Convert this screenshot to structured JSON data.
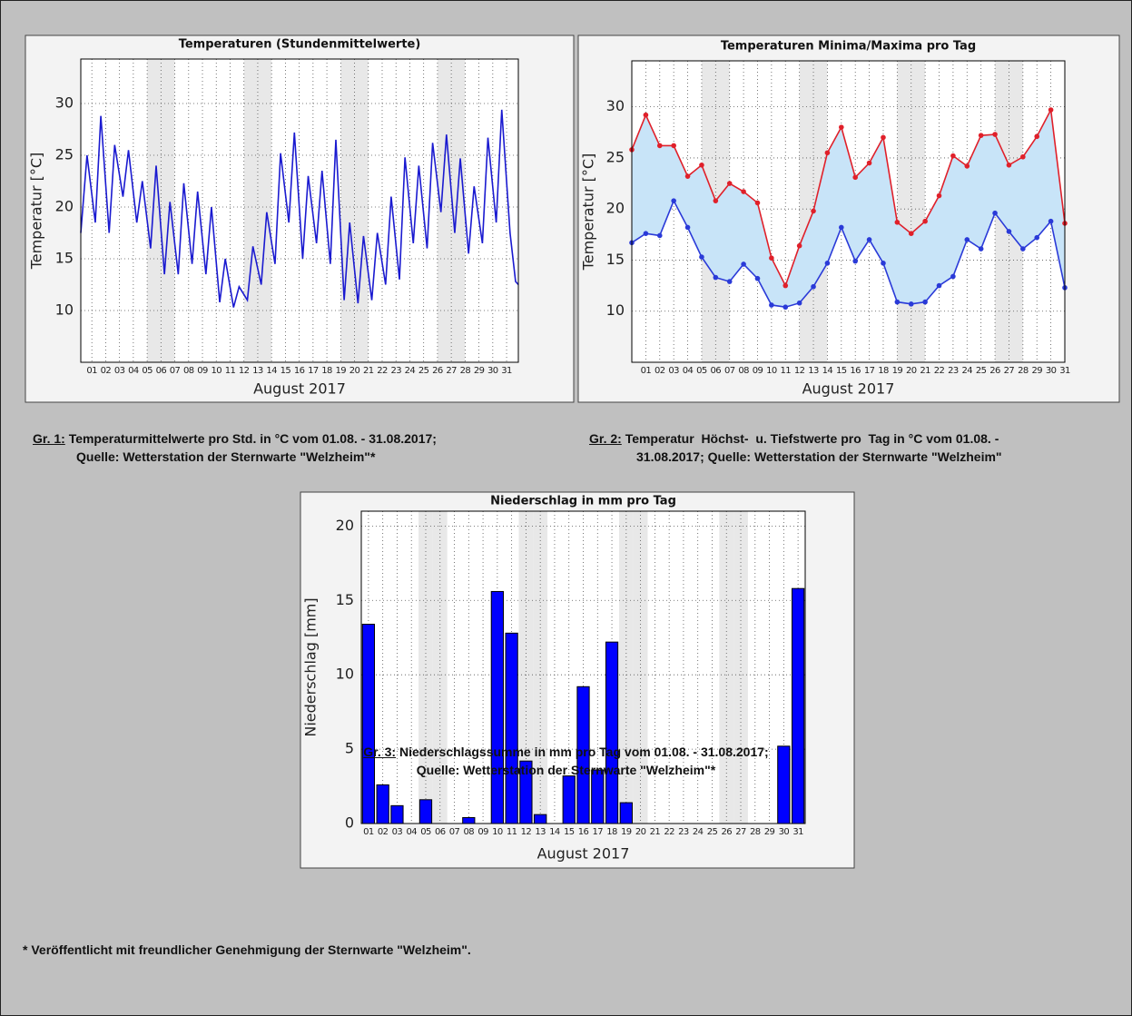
{
  "chart_data": [
    {
      "type": "line",
      "title": "Temperaturen (Stundenmittelwerte)",
      "ylabel": "Temperatur [°C]",
      "xlabel": "August 2017",
      "x": [
        0.2,
        0.65,
        1.25,
        1.65,
        2.25,
        2.65,
        3.25,
        3.65,
        4.25,
        4.65,
        5.25,
        5.65,
        6.25,
        6.65,
        7.25,
        7.65,
        8.25,
        8.65,
        9.25,
        9.65,
        10.25,
        10.65,
        11.25,
        11.65,
        12.25,
        12.65,
        13.25,
        13.65,
        14.25,
        14.65,
        15.25,
        15.65,
        16.25,
        16.65,
        17.25,
        17.65,
        18.25,
        18.65,
        19.25,
        19.65,
        20.25,
        20.65,
        21.25,
        21.65,
        22.25,
        22.65,
        23.25,
        23.65,
        24.25,
        24.65,
        25.25,
        25.65,
        26.25,
        26.65,
        27.25,
        27.65,
        28.25,
        28.65,
        29.25,
        29.65,
        30.25,
        30.65,
        31.25,
        31.65,
        31.85
      ],
      "series": [
        {
          "color": "#1a1ad0",
          "values": [
            17.5,
            25,
            18.5,
            28.8,
            17.5,
            26,
            21,
            25.5,
            18.5,
            22.5,
            16,
            24,
            13.5,
            20.5,
            13.5,
            22.3,
            14.5,
            21.5,
            13.5,
            20,
            10.8,
            15,
            10.3,
            12.3,
            11,
            16.2,
            12.5,
            19.5,
            14.5,
            25.2,
            18.5,
            27.2,
            15,
            23,
            16.5,
            23.5,
            14.5,
            26.5,
            11,
            18.5,
            10.7,
            17.2,
            11,
            17.5,
            12.5,
            21,
            13,
            24.8,
            16.5,
            24,
            16,
            26.2,
            19.5,
            27,
            17.5,
            24.7,
            15.5,
            22,
            16.5,
            26.7,
            18.5,
            29.4,
            17.5,
            12.8,
            12.5
          ]
        }
      ],
      "xlim": [
        0.2,
        31.85
      ],
      "xticks": [
        {
          "value": 1,
          "label": "01"
        },
        {
          "value": 2,
          "label": "02"
        },
        {
          "value": 3,
          "label": "03"
        },
        {
          "value": 4,
          "label": "04"
        },
        {
          "value": 5,
          "label": "05"
        },
        {
          "value": 6,
          "label": "06"
        },
        {
          "value": 7,
          "label": "07"
        },
        {
          "value": 8,
          "label": "08"
        },
        {
          "value": 9,
          "label": "09"
        },
        {
          "value": 10,
          "label": "10"
        },
        {
          "value": 11,
          "label": "11"
        },
        {
          "value": 12,
          "label": "12"
        },
        {
          "value": 13,
          "label": "13"
        },
        {
          "value": 14,
          "label": "14"
        },
        {
          "value": 15,
          "label": "15"
        },
        {
          "value": 16,
          "label": "16"
        },
        {
          "value": 17,
          "label": "17"
        },
        {
          "value": 18,
          "label": "18"
        },
        {
          "value": 19,
          "label": "19"
        },
        {
          "value": 20,
          "label": "20"
        },
        {
          "value": 21,
          "label": "21"
        },
        {
          "value": 22,
          "label": "22"
        },
        {
          "value": 23,
          "label": "23"
        },
        {
          "value": 24,
          "label": "24"
        },
        {
          "value": 25,
          "label": "25"
        },
        {
          "value": 26,
          "label": "26"
        },
        {
          "value": 27,
          "label": "27"
        },
        {
          "value": 28,
          "label": "28"
        },
        {
          "value": 29,
          "label": "29"
        },
        {
          "value": 30,
          "label": "30"
        },
        {
          "value": 31,
          "label": "31"
        }
      ],
      "ylim": [
        5,
        34.3
      ],
      "yticks": [
        10,
        15,
        20,
        25,
        30
      ],
      "grid": true,
      "weekend_days": [
        5,
        6,
        12,
        13,
        19,
        20,
        26,
        27
      ]
    },
    {
      "type": "line",
      "title": "Temperaturen Minima/Maxima pro Tag",
      "ylabel": "Temperatur [°C]",
      "xlabel": "August 2017",
      "categories": [
        null,
        "01",
        "02",
        "03",
        "04",
        "05",
        "06",
        "07",
        "08",
        "09",
        "10",
        "11",
        "12",
        "13",
        "14",
        "15",
        "16",
        "17",
        "18",
        "19",
        "20",
        "21",
        "22",
        "23",
        "24",
        "25",
        "26",
        "27",
        "28",
        "29",
        "30",
        "31"
      ],
      "series": [
        {
          "color": "#e0202a",
          "values": [
            25.8,
            29.2,
            26.2,
            26.2,
            23.2,
            24.3,
            20.8,
            22.5,
            21.7,
            20.6,
            15.2,
            12.5,
            16.4,
            19.8,
            25.5,
            28.0,
            23.1,
            24.5,
            27.0,
            18.7,
            17.6,
            18.8,
            21.3,
            25.2,
            24.2,
            27.2,
            27.3,
            24.3,
            25.1,
            27.1,
            29.7,
            18.6
          ]
        },
        {
          "color": "#2a3ad8",
          "values": [
            16.7,
            17.6,
            17.4,
            20.8,
            18.2,
            15.3,
            13.3,
            12.9,
            14.6,
            13.2,
            10.6,
            10.4,
            10.8,
            12.4,
            14.7,
            18.2,
            14.9,
            17.0,
            14.7,
            10.9,
            10.7,
            10.9,
            12.5,
            13.4,
            17.0,
            16.1,
            19.6,
            17.8,
            16.1,
            17.2,
            18.8,
            12.3
          ]
        }
      ],
      "fill_between": "#c8e4f8",
      "markers": true,
      "ylim": [
        5,
        34.5
      ],
      "yticks": [
        10,
        15,
        20,
        25,
        30
      ],
      "grid": true,
      "weekend_days": [
        5,
        6,
        12,
        13,
        19,
        20,
        26,
        27
      ]
    },
    {
      "type": "bar",
      "title": "Niederschlag in mm pro Tag",
      "ylabel": "Niederschlag [mm]",
      "xlabel": "August 2017",
      "categories": [
        "01",
        "02",
        "03",
        "04",
        "05",
        "06",
        "07",
        "08",
        "09",
        "10",
        "11",
        "12",
        "13",
        "14",
        "15",
        "16",
        "17",
        "18",
        "19",
        "20",
        "21",
        "22",
        "23",
        "24",
        "25",
        "26",
        "27",
        "28",
        "29",
        "30",
        "31"
      ],
      "values": [
        13.4,
        2.6,
        1.2,
        0,
        1.6,
        0,
        0,
        0.4,
        0,
        15.6,
        12.8,
        4.2,
        0.6,
        0,
        3.2,
        9.2,
        3.6,
        12.2,
        1.4,
        0,
        0,
        0,
        0,
        0,
        0,
        0,
        0,
        0,
        0,
        5.2,
        15.8
      ],
      "color": "#0000ff",
      "ylim": [
        0,
        21
      ],
      "yticks": [
        0,
        5,
        10,
        15,
        20
      ],
      "grid": true,
      "weekend_days": [
        5,
        6,
        12,
        13,
        19,
        20,
        26,
        27
      ]
    }
  ],
  "captions": [
    {
      "label": "Gr. 1:",
      "lines": [
        "Temperaturmittelwerte pro Std. in °C vom 01.08. - 31.08.2017;",
        "Quelle: Wetterstation der Sternwarte \"Welzheim\"*"
      ]
    },
    {
      "label": "Gr. 2:",
      "lines": [
        "Temperatur  Höchst-  u. Tiefstwerte pro  Tag in °C vom 01.08. -",
        "31.08.2017; Quelle: Wetterstation der Sternwarte \"Welzheim\""
      ]
    },
    {
      "label": "Gr. 3:",
      "lines": [
        "Niederschlagssumme in mm pro Tag vom 01.08. - 31.08.2017;",
        "Quelle: Wetterstation der Sternwarte \"Welzheim\"*"
      ]
    }
  ],
  "footnote": "* Veröffentlicht mit freundlicher Genehmigung der Sternwarte \"Welzheim\"."
}
